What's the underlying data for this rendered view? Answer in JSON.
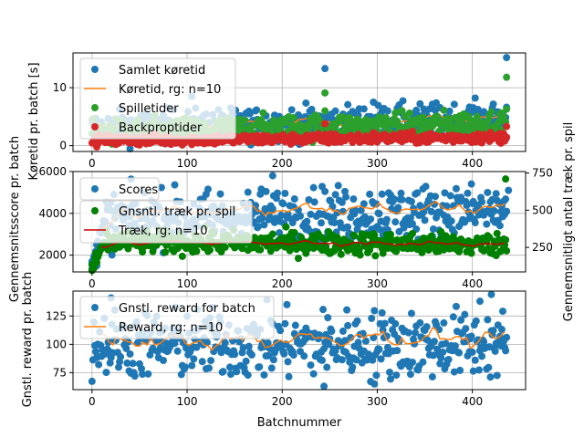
{
  "figure": {
    "xlabel": "Batchnummer"
  },
  "chart_data": [
    {
      "type": "scatter",
      "panel": "top",
      "xlabel": "",
      "ylabel": "Køretid pr. batch [s]",
      "xlim": [
        -20,
        456
      ],
      "ylim": [
        -1,
        16
      ],
      "xticks": [
        0,
        100,
        200,
        300,
        400
      ],
      "yticks": [
        0,
        10
      ],
      "grid": true,
      "legend_position": "upper-left",
      "series": [
        {
          "name": "Samlet køretid",
          "kind": "points",
          "color": "#1f77b4",
          "base": 3.0,
          "trend": 0.004,
          "noise": 1.4,
          "x_start": 0,
          "x_end": 436,
          "x_step": 1,
          "extra_points": [
            [
              245,
              13.3
            ],
            [
              436,
              15.2
            ],
            [
              296,
              7.5
            ],
            [
              105,
              8.5
            ]
          ]
        },
        {
          "name": "Køretid, rg: n=10",
          "kind": "line",
          "color": "#ff7f0e",
          "base": 3.2,
          "trend": 0.004,
          "wave": 0.5,
          "x_start": 10,
          "x_end": 434,
          "x_step": 4
        },
        {
          "name": "Spilletider",
          "kind": "points",
          "color": "#2ca02c",
          "base": 2.2,
          "trend": 0.004,
          "noise": 1.1,
          "x_start": 0,
          "x_end": 436,
          "x_step": 1,
          "extra_points": [
            [
              245,
              9.1
            ],
            [
              436,
              11.8
            ],
            [
              245,
              6.0
            ]
          ]
        },
        {
          "name": "Backproptider",
          "kind": "points",
          "color": "#d62728",
          "base": 0.9,
          "trend": 0.0012,
          "noise": 0.45,
          "x_start": 0,
          "x_end": 436,
          "x_step": 1,
          "extra_points": [
            [
              245,
              3.8
            ],
            [
              436,
              3.3
            ],
            [
              296,
              2.2
            ]
          ]
        }
      ]
    },
    {
      "type": "scatter",
      "panel": "middle",
      "xlabel": "",
      "ylabel": "Gennemsnitsscore pr. batch",
      "ylabel_right": "Gennemsnitligt antal træk pr. spil",
      "xlim": [
        -20,
        456
      ],
      "ylim": [
        1200,
        6000
      ],
      "ylim_right": [
        85,
        760
      ],
      "xticks": [
        0,
        100,
        200,
        300,
        400
      ],
      "yticks": [
        2000,
        4000,
        6000
      ],
      "yticks_right": [
        250,
        500,
        750
      ],
      "grid": true,
      "legend_position": "upper-left",
      "series": [
        {
          "name": "Scores",
          "kind": "points",
          "color": "#1f77b4",
          "axis": "left",
          "base": 3700,
          "trend": 1.0,
          "noise": 650,
          "x_start": 0,
          "x_end": 436,
          "x_step": 1,
          "start_value": 1800,
          "extra_points": [
            [
              190,
              5800
            ],
            [
              438,
              5100
            ],
            [
              5,
              1500
            ],
            [
              0,
              1700
            ]
          ]
        },
        {
          "name": "Gnsntl. træk pr. spil",
          "kind": "points",
          "color": "#008000",
          "axis": "right",
          "base": 290,
          "trend": -0.05,
          "noise": 38,
          "x_start": 0,
          "x_end": 436,
          "x_step": 1,
          "start_value": 130,
          "extra_points": [
            [
              435,
              710
            ],
            [
              0,
              95
            ],
            [
              2,
              110
            ],
            [
              5,
              150
            ]
          ]
        },
        {
          "name": "Træk, rg: n=10",
          "kind": "line",
          "color": "#cc0000",
          "axis": "right",
          "base": 285,
          "trend": -0.03,
          "wave": 12,
          "x_start": 10,
          "x_end": 434,
          "x_step": 4,
          "start_value": 220
        },
        {
          "name": "",
          "kind": "line",
          "color": "#ff7f0e",
          "axis": "left",
          "base": 4050,
          "trend": 0.6,
          "wave": 220,
          "x_start": 10,
          "x_end": 434,
          "x_step": 4,
          "start_value": 2600
        }
      ]
    },
    {
      "type": "scatter",
      "panel": "bottom",
      "xlabel": "Batchnummer",
      "ylabel": "Gnstl. reward pr. batch",
      "xlim": [
        -20,
        456
      ],
      "ylim": [
        60,
        147
      ],
      "xticks": [
        0,
        100,
        200,
        300,
        400
      ],
      "yticks": [
        75,
        100,
        125
      ],
      "grid": true,
      "legend_position": "upper-left",
      "series": [
        {
          "name": "Gnstl. reward for batch",
          "kind": "points",
          "color": "#1f77b4",
          "base": 100,
          "trend": 0.0,
          "noise": 15,
          "x_start": 0,
          "x_end": 436,
          "x_step": 1,
          "extra_points": [
            [
              244,
              63
            ],
            [
              297,
              65
            ],
            [
              20,
              141
            ],
            [
              420,
              144
            ],
            [
              408,
              138
            ]
          ]
        },
        {
          "name": "Reward, rg: n=10",
          "kind": "line",
          "color": "#ff7f0e",
          "base": 102,
          "trend": 0.01,
          "wave": 6,
          "x_start": 10,
          "x_end": 434,
          "x_step": 4
        }
      ]
    }
  ],
  "ticks": {
    "x": [
      "0",
      "100",
      "200",
      "300",
      "400"
    ],
    "top_y": [
      "0",
      "10"
    ],
    "mid_y": [
      "2000",
      "4000",
      "6000"
    ],
    "mid_y_right": [
      "250",
      "500",
      "750"
    ],
    "bot_y": [
      "75",
      "100",
      "125"
    ]
  },
  "labels": {
    "top_ylabel": "Køretid pr. batch [s]",
    "mid_ylabel": "Gennemsnitsscore pr. batch",
    "mid_ylabel_right": "Gennemsnitligt antal træk pr. spil",
    "bot_ylabel": "Gnstl. reward pr. batch",
    "xlabel": "Batchnummer"
  },
  "legends": {
    "top": [
      "Samlet køretid",
      "Køretid, rg: n=10",
      "Spilletider",
      "Backproptider"
    ],
    "mid_left": [
      "Scores"
    ],
    "mid_right": [
      "Gnsntl. træk pr. spil",
      "Træk, rg: n=10"
    ],
    "bot": [
      "Gnstl. reward for batch",
      "Reward, rg: n=10"
    ]
  },
  "colors": {
    "blue": "#1f77b4",
    "orange": "#ff7f0e",
    "green_light": "#2ca02c",
    "red": "#d62728",
    "green_dark": "#008000",
    "red_dark": "#cc0000",
    "grid": "#b0b0b0"
  }
}
